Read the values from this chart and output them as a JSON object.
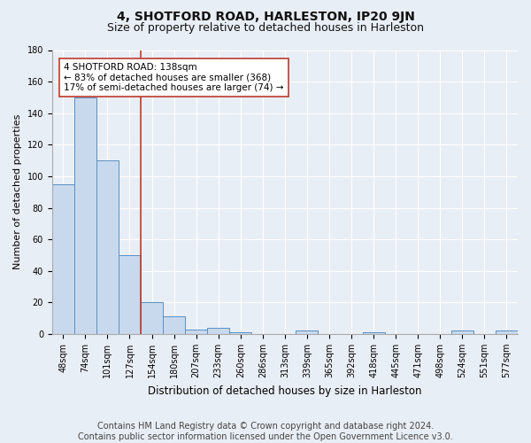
{
  "title": "4, SHOTFORD ROAD, HARLESTON, IP20 9JN",
  "subtitle": "Size of property relative to detached houses in Harleston",
  "xlabel": "Distribution of detached houses by size in Harleston",
  "ylabel": "Number of detached properties",
  "categories": [
    "48sqm",
    "74sqm",
    "101sqm",
    "127sqm",
    "154sqm",
    "180sqm",
    "207sqm",
    "233sqm",
    "260sqm",
    "286sqm",
    "313sqm",
    "339sqm",
    "365sqm",
    "392sqm",
    "418sqm",
    "445sqm",
    "471sqm",
    "498sqm",
    "524sqm",
    "551sqm",
    "577sqm"
  ],
  "values": [
    95,
    150,
    110,
    50,
    20,
    11,
    3,
    4,
    1,
    0,
    0,
    2,
    0,
    0,
    1,
    0,
    0,
    0,
    2,
    0,
    2
  ],
  "bar_color": "#c9d9ed",
  "bar_edgecolor": "#5a8fc2",
  "vline_x": 3.5,
  "vline_color": "#c0392b",
  "annotation_text": "4 SHOTFORD ROAD: 138sqm\n← 83% of detached houses are smaller (368)\n17% of semi-detached houses are larger (74) →",
  "annotation_box_color": "white",
  "annotation_box_edgecolor": "#c0392b",
  "ylim": [
    0,
    180
  ],
  "yticks": [
    0,
    20,
    40,
    60,
    80,
    100,
    120,
    140,
    160,
    180
  ],
  "footer": "Contains HM Land Registry data © Crown copyright and database right 2024.\nContains public sector information licensed under the Open Government Licence v3.0.",
  "bg_color": "#e8eef5",
  "plot_bg_color": "#e8eef5",
  "title_fontsize": 10,
  "subtitle_fontsize": 9,
  "footer_fontsize": 7,
  "annotation_fontsize": 7.5,
  "ylabel_fontsize": 8,
  "xlabel_fontsize": 8.5,
  "tick_fontsize": 7
}
